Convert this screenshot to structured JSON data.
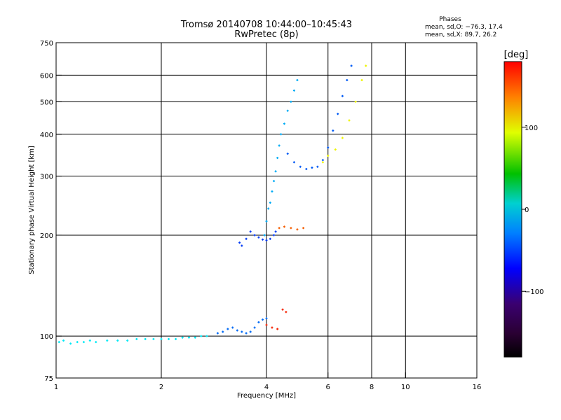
{
  "chart_data": {
    "type": "scatter",
    "title": "Tromsø 20140708 10:44:00–10:45:43",
    "subtitle": "RwPretec (8p)",
    "stats": {
      "heading": "Phases",
      "line1": "mean, sd,O: −76.3, 17.4",
      "line2": "mean, sd,X:  89.7, 26.2"
    },
    "xlabel": "Frequency [MHz]",
    "ylabel": "Stationary phase Virtual Height [km]",
    "xscale": "log",
    "yscale": "log",
    "xlim": [
      1,
      16
    ],
    "ylim": [
      75,
      750
    ],
    "xticks": [
      1,
      2,
      4,
      6,
      8,
      10,
      16
    ],
    "xtick_labels": [
      "1",
      "2",
      "4",
      "6",
      "8",
      "10",
      "16"
    ],
    "yticks": [
      75,
      100,
      200,
      300,
      400,
      500,
      600,
      750
    ],
    "ytick_labels": [
      "75",
      "100",
      "200",
      "300",
      "400",
      "500",
      "600",
      "750"
    ],
    "x_gridlines": [
      2,
      4,
      6,
      8,
      10
    ],
    "y_gridlines": [
      100,
      200,
      300,
      400,
      500,
      600
    ],
    "colorbar": {
      "label": "[deg]",
      "range": [
        -180,
        180
      ],
      "ticks": [
        100,
        0,
        -100
      ],
      "tick_labels": [
        "100",
        "0",
        "−100"
      ],
      "colormap": "rainbow"
    },
    "series": [
      {
        "phase": -55,
        "points": [
          [
            1.02,
            96
          ],
          [
            1.05,
            97
          ],
          [
            1.1,
            95
          ],
          [
            1.15,
            96
          ],
          [
            1.2,
            96
          ],
          [
            1.25,
            97
          ],
          [
            1.3,
            96
          ],
          [
            1.4,
            97
          ],
          [
            1.5,
            97
          ],
          [
            1.6,
            97
          ],
          [
            1.7,
            98
          ],
          [
            1.8,
            98
          ],
          [
            1.9,
            98
          ],
          [
            2.0,
            98
          ],
          [
            2.1,
            98
          ],
          [
            2.2,
            98
          ],
          [
            2.3,
            99
          ],
          [
            2.4,
            99
          ],
          [
            2.5,
            99
          ],
          [
            2.6,
            100
          ],
          [
            2.7,
            100
          ]
        ]
      },
      {
        "phase": -95,
        "points": [
          [
            2.9,
            102
          ],
          [
            3.0,
            103
          ],
          [
            3.1,
            105
          ],
          [
            3.2,
            106
          ],
          [
            3.3,
            104
          ],
          [
            3.4,
            103
          ],
          [
            3.5,
            102
          ],
          [
            3.6,
            103
          ],
          [
            3.7,
            106
          ],
          [
            3.8,
            110
          ],
          [
            3.9,
            112
          ],
          [
            4.0,
            113
          ]
        ]
      },
      {
        "phase": -110,
        "points": [
          [
            3.35,
            190
          ],
          [
            3.4,
            186
          ],
          [
            3.5,
            195
          ],
          [
            3.6,
            205
          ],
          [
            3.7,
            200
          ],
          [
            3.8,
            197
          ],
          [
            3.9,
            194
          ],
          [
            4.0,
            193
          ],
          [
            4.1,
            195
          ],
          [
            4.2,
            200
          ],
          [
            4.25,
            205
          ]
        ]
      },
      {
        "phase": -75,
        "points": [
          [
            3.95,
            200
          ],
          [
            4.0,
            220
          ],
          [
            4.05,
            240
          ],
          [
            4.1,
            250
          ],
          [
            4.15,
            270
          ],
          [
            4.2,
            290
          ],
          [
            4.25,
            310
          ],
          [
            4.3,
            340
          ],
          [
            4.35,
            370
          ],
          [
            4.4,
            400
          ],
          [
            4.5,
            430
          ],
          [
            4.6,
            470
          ],
          [
            4.7,
            500
          ],
          [
            4.8,
            540
          ],
          [
            4.9,
            580
          ]
        ]
      },
      {
        "phase": -100,
        "points": [
          [
            4.6,
            350
          ],
          [
            4.8,
            330
          ],
          [
            5.0,
            320
          ],
          [
            5.2,
            315
          ],
          [
            5.4,
            318
          ],
          [
            5.6,
            320
          ],
          [
            5.8,
            335
          ],
          [
            6.0,
            365
          ],
          [
            6.2,
            410
          ],
          [
            6.4,
            460
          ],
          [
            6.6,
            520
          ],
          [
            6.8,
            580
          ],
          [
            7.0,
            640
          ]
        ]
      },
      {
        "phase": 100,
        "points": [
          [
            5.8,
            330
          ],
          [
            6.0,
            345
          ],
          [
            6.3,
            360
          ],
          [
            6.6,
            390
          ],
          [
            6.9,
            440
          ],
          [
            7.2,
            500
          ],
          [
            7.5,
            580
          ],
          [
            7.7,
            640
          ]
        ]
      },
      {
        "phase": 150,
        "points": [
          [
            4.35,
            210
          ],
          [
            4.5,
            212
          ],
          [
            4.7,
            210
          ],
          [
            4.9,
            208
          ],
          [
            5.1,
            210
          ]
        ]
      },
      {
        "phase": 170,
        "points": [
          [
            4.0,
            108
          ],
          [
            4.15,
            106
          ],
          [
            4.3,
            105
          ],
          [
            4.45,
            120
          ],
          [
            4.55,
            118
          ]
        ]
      }
    ]
  }
}
